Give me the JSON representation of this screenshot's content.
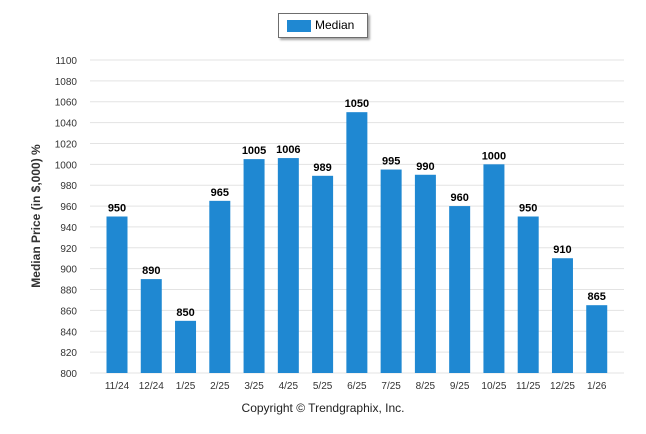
{
  "chart_data": {
    "type": "bar",
    "categories": [
      "11/24",
      "12/24",
      "1/25",
      "2/25",
      "3/25",
      "4/25",
      "5/25",
      "6/25",
      "7/25",
      "8/25",
      "9/25",
      "10/25",
      "11/25",
      "12/25",
      "1/26"
    ],
    "series": [
      {
        "name": "Median",
        "color": "#1f88d2",
        "values": [
          950,
          890,
          850,
          965,
          1005,
          1006,
          989,
          1050,
          995,
          990,
          960,
          1000,
          950,
          910,
          865
        ]
      }
    ],
    "ylabel": "Median Price (in $,000) %",
    "ylim": [
      800,
      1100
    ],
    "yticks": [
      800,
      820,
      840,
      860,
      880,
      900,
      920,
      940,
      960,
      980,
      1000,
      1020,
      1040,
      1060,
      1080,
      1100
    ],
    "grid": true,
    "legend_position": "top-center",
    "data_labels": true
  },
  "legend": {
    "label": "Median"
  },
  "footer": {
    "copyright": "Copyright © Trendgraphix, Inc."
  }
}
